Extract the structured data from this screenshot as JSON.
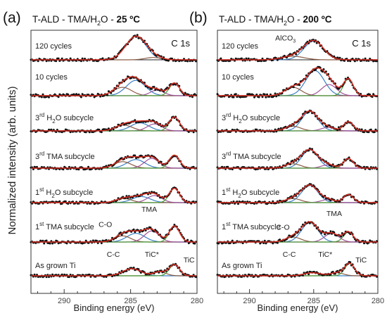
{
  "figure": {
    "y_axis_label": "Normalized intensity (arb. units)",
    "x_axis_label": "Binding energy (eV)"
  },
  "chart_data": [
    {
      "type": "line",
      "panel_letter": "(a)",
      "title_prefix": "T-ALD - TMA/H",
      "title_sub": "2",
      "title_mid": "O - ",
      "title_bold": "25 ºC",
      "corner_label": "C 1s",
      "xlabel": "Binding energy (eV)",
      "xlim": [
        292.5,
        280
      ],
      "x_ticks": [
        290,
        285,
        280
      ],
      "x_tick_labels": [
        "290",
        "285",
        "280"
      ],
      "series": [
        {
          "label_main": "120 cycles",
          "label_sup": "",
          "label_pre": "",
          "label_sub": "",
          "label_post": "",
          "peaks": [
            {
              "center": 284.6,
              "fwhm": 1.8,
              "height": 1.0,
              "color": "#3b7fc4"
            },
            {
              "center": 283.3,
              "fwhm": 1.4,
              "height": 0.1,
              "color": "#8a5a44"
            }
          ]
        },
        {
          "label_main": "10 cycles",
          "label_sup": "",
          "label_pre": "",
          "label_sub": "",
          "label_post": "",
          "peaks": [
            {
              "center": 284.6,
              "fwhm": 1.7,
              "height": 0.55,
              "color": "#3b7fc4"
            },
            {
              "center": 285.6,
              "fwhm": 1.6,
              "height": 0.3,
              "color": "#8a5a44"
            },
            {
              "center": 283.0,
              "fwhm": 1.2,
              "height": 0.2,
              "color": "#a0559a"
            },
            {
              "center": 281.7,
              "fwhm": 0.9,
              "height": 0.45,
              "color": "#4a9a3a"
            }
          ]
        },
        {
          "label_main": "",
          "label_sup": "rd",
          "label_pre": "3",
          "label_sub": "2",
          "label_post": " H_O subcycle",
          "peaks": [
            {
              "center": 284.3,
              "fwhm": 1.6,
              "height": 0.35,
              "color": "#3b7fc4"
            },
            {
              "center": 285.5,
              "fwhm": 1.5,
              "height": 0.25,
              "color": "#8a5a44"
            },
            {
              "center": 283.2,
              "fwhm": 1.3,
              "height": 0.3,
              "color": "#a0559a"
            },
            {
              "center": 281.7,
              "fwhm": 0.9,
              "height": 0.6,
              "color": "#4a9a3a"
            }
          ]
        },
        {
          "label_main": "",
          "label_sup": "rd",
          "label_pre": "3",
          "label_sub": "",
          "label_post": " TMA subcycle",
          "peaks": [
            {
              "center": 284.6,
              "fwhm": 1.6,
              "height": 0.4,
              "color": "#3b7fc4"
            },
            {
              "center": 285.6,
              "fwhm": 1.5,
              "height": 0.3,
              "color": "#8a5a44"
            },
            {
              "center": 283.4,
              "fwhm": 1.3,
              "height": 0.45,
              "color": "#a0559a"
            },
            {
              "center": 281.7,
              "fwhm": 0.9,
              "height": 0.6,
              "color": "#4a9a3a"
            }
          ]
        },
        {
          "label_main": "",
          "label_sup": "st",
          "label_pre": "1",
          "label_sub": "2",
          "label_post": " H_O subcycle",
          "peaks": [
            {
              "center": 284.2,
              "fwhm": 1.6,
              "height": 0.3,
              "color": "#3b7fc4"
            },
            {
              "center": 285.5,
              "fwhm": 1.4,
              "height": 0.2,
              "color": "#8a5a44"
            },
            {
              "center": 283.2,
              "fwhm": 1.3,
              "height": 0.35,
              "color": "#a0559a"
            },
            {
              "center": 281.7,
              "fwhm": 0.9,
              "height": 0.7,
              "color": "#4a9a3a"
            }
          ]
        },
        {
          "label_main": "",
          "label_sup": "st",
          "label_pre": "1",
          "label_sub": "",
          "label_post": " TMA subcycle",
          "peaks": [
            {
              "center": 284.6,
              "fwhm": 1.6,
              "height": 0.35,
              "color": "#3b7fc4"
            },
            {
              "center": 285.6,
              "fwhm": 1.4,
              "height": 0.25,
              "color": "#8a5a44"
            },
            {
              "center": 283.4,
              "fwhm": 1.3,
              "height": 0.45,
              "color": "#a0559a"
            },
            {
              "center": 281.7,
              "fwhm": 0.9,
              "height": 0.65,
              "color": "#4a9a3a"
            }
          ]
        },
        {
          "label_main": "As grown Ti",
          "label_sup": "",
          "label_pre": "",
          "label_sub": "",
          "label_post": "",
          "peaks": [
            {
              "center": 284.9,
              "fwhm": 1.6,
              "height": 0.35,
              "color": "#3b7fc4"
            },
            {
              "center": 282.8,
              "fwhm": 1.1,
              "height": 0.2,
              "color": "#8a5a44"
            },
            {
              "center": 281.7,
              "fwhm": 0.9,
              "height": 0.55,
              "color": "#4a9a3a"
            }
          ]
        }
      ],
      "annotations": [
        {
          "text": "TMA",
          "series_index": 5,
          "x": 283.6,
          "y_frac": 1.1
        },
        {
          "text": "C-O",
          "series_index": 5,
          "x": 286.9,
          "y_frac": 0.55
        },
        {
          "text": "C-C",
          "series_index": 6,
          "x": 286.3,
          "y_frac": 0.85
        },
        {
          "text": "TiC*",
          "series_index": 6,
          "x": 283.4,
          "y_frac": 0.85
        },
        {
          "text": "TiC",
          "series_index": 6,
          "x": 280.6,
          "y_frac": 0.6
        }
      ]
    },
    {
      "type": "line",
      "panel_letter": "(b)",
      "title_prefix": "T-ALD - TMA/H",
      "title_sub": "2",
      "title_mid": "O - ",
      "title_bold": "200 ºC",
      "corner_label": "C 1s",
      "xlabel": "Binding energy (eV)",
      "xlim": [
        292.5,
        280
      ],
      "x_ticks": [
        290,
        285,
        280
      ],
      "x_tick_labels": [
        "290",
        "285",
        "280"
      ],
      "series": [
        {
          "label_main": "120 cycles",
          "label_sup": "",
          "label_pre": "",
          "label_sub": "",
          "label_post": "",
          "peaks": [
            {
              "center": 285.0,
              "fwhm": 1.8,
              "height": 0.8,
              "color": "#3b7fc4"
            },
            {
              "center": 286.6,
              "fwhm": 2.0,
              "height": 0.15,
              "color": "#8a5a44"
            }
          ]
        },
        {
          "label_main": "10 cycles",
          "label_sup": "",
          "label_pre": "",
          "label_sub": "",
          "label_post": "",
          "peaks": [
            {
              "center": 284.9,
              "fwhm": 1.7,
              "height": 0.9,
              "color": "#3b7fc4"
            },
            {
              "center": 286.6,
              "fwhm": 1.5,
              "height": 0.3,
              "color": "#8a5a44"
            },
            {
              "center": 283.8,
              "fwhm": 1.4,
              "height": 0.4,
              "color": "#a0559a"
            },
            {
              "center": 282.3,
              "fwhm": 0.9,
              "height": 0.6,
              "color": "#4a9a3a"
            }
          ]
        },
        {
          "label_main": "",
          "label_sup": "rd",
          "label_pre": "3",
          "label_sub": "2",
          "label_post": " H_O subcycle",
          "peaks": [
            {
              "center": 285.3,
              "fwhm": 1.5,
              "height": 0.85,
              "color": "#3b7fc4"
            },
            {
              "center": 286.6,
              "fwhm": 1.4,
              "height": 0.2,
              "color": "#8a5a44"
            },
            {
              "center": 283.9,
              "fwhm": 1.2,
              "height": 0.15,
              "color": "#a0559a"
            },
            {
              "center": 282.3,
              "fwhm": 0.9,
              "height": 0.4,
              "color": "#4a9a3a"
            }
          ]
        },
        {
          "label_main": "",
          "label_sup": "rd",
          "label_pre": "3",
          "label_sub": "",
          "label_post": " TMA subcycle",
          "peaks": [
            {
              "center": 285.3,
              "fwhm": 1.5,
              "height": 0.85,
              "color": "#3b7fc4"
            },
            {
              "center": 286.6,
              "fwhm": 1.4,
              "height": 0.2,
              "color": "#8a5a44"
            },
            {
              "center": 283.9,
              "fwhm": 1.2,
              "height": 0.15,
              "color": "#a0559a"
            },
            {
              "center": 282.3,
              "fwhm": 0.9,
              "height": 0.45,
              "color": "#4a9a3a"
            }
          ]
        },
        {
          "label_main": "",
          "label_sup": "st",
          "label_pre": "1",
          "label_sub": "2",
          "label_post": " H_O subcycle",
          "peaks": [
            {
              "center": 285.3,
              "fwhm": 1.5,
              "height": 0.85,
              "color": "#3b7fc4"
            },
            {
              "center": 286.6,
              "fwhm": 1.4,
              "height": 0.2,
              "color": "#8a5a44"
            },
            {
              "center": 283.9,
              "fwhm": 1.2,
              "height": 0.15,
              "color": "#a0559a"
            },
            {
              "center": 282.3,
              "fwhm": 0.9,
              "height": 0.4,
              "color": "#4a9a3a"
            }
          ]
        },
        {
          "label_main": "",
          "label_sup": "st",
          "label_pre": "1",
          "label_sub": "",
          "label_post": " TMA subcycle",
          "peaks": [
            {
              "center": 285.3,
              "fwhm": 1.5,
              "height": 0.8,
              "color": "#3b7fc4"
            },
            {
              "center": 286.6,
              "fwhm": 1.4,
              "height": 0.2,
              "color": "#8a5a44"
            },
            {
              "center": 283.6,
              "fwhm": 1.3,
              "height": 0.35,
              "color": "#a0559a"
            },
            {
              "center": 282.3,
              "fwhm": 0.9,
              "height": 0.4,
              "color": "#4a9a3a"
            }
          ]
        },
        {
          "label_main": "As grown Ti",
          "label_sup": "",
          "label_pre": "",
          "label_sub": "",
          "label_post": "",
          "peaks": [
            {
              "center": 285.1,
              "fwhm": 1.5,
              "height": 0.15,
              "color": "#3b7fc4"
            },
            {
              "center": 283.2,
              "fwhm": 1.2,
              "height": 0.15,
              "color": "#8a5a44"
            },
            {
              "center": 282.2,
              "fwhm": 0.9,
              "height": 0.6,
              "color": "#4a9a3a"
            }
          ]
        }
      ],
      "annotations": [
        {
          "text": "AlCO",
          "text_sub": "3",
          "series_index": 0,
          "x": 287.2,
          "y_frac": 0.75
        },
        {
          "text": "TMA",
          "series_index": 5,
          "x": 283.4,
          "y_frac": 0.95
        },
        {
          "text": "C-O",
          "series_index": 5,
          "x": 287.4,
          "y_frac": 0.45
        },
        {
          "text": "C-C",
          "series_index": 6,
          "x": 286.9,
          "y_frac": 0.85
        },
        {
          "text": "TiC*",
          "series_index": 6,
          "x": 284.1,
          "y_frac": 0.85
        },
        {
          "text": "TiC",
          "series_index": 6,
          "x": 281.3,
          "y_frac": 0.6
        }
      ]
    }
  ]
}
